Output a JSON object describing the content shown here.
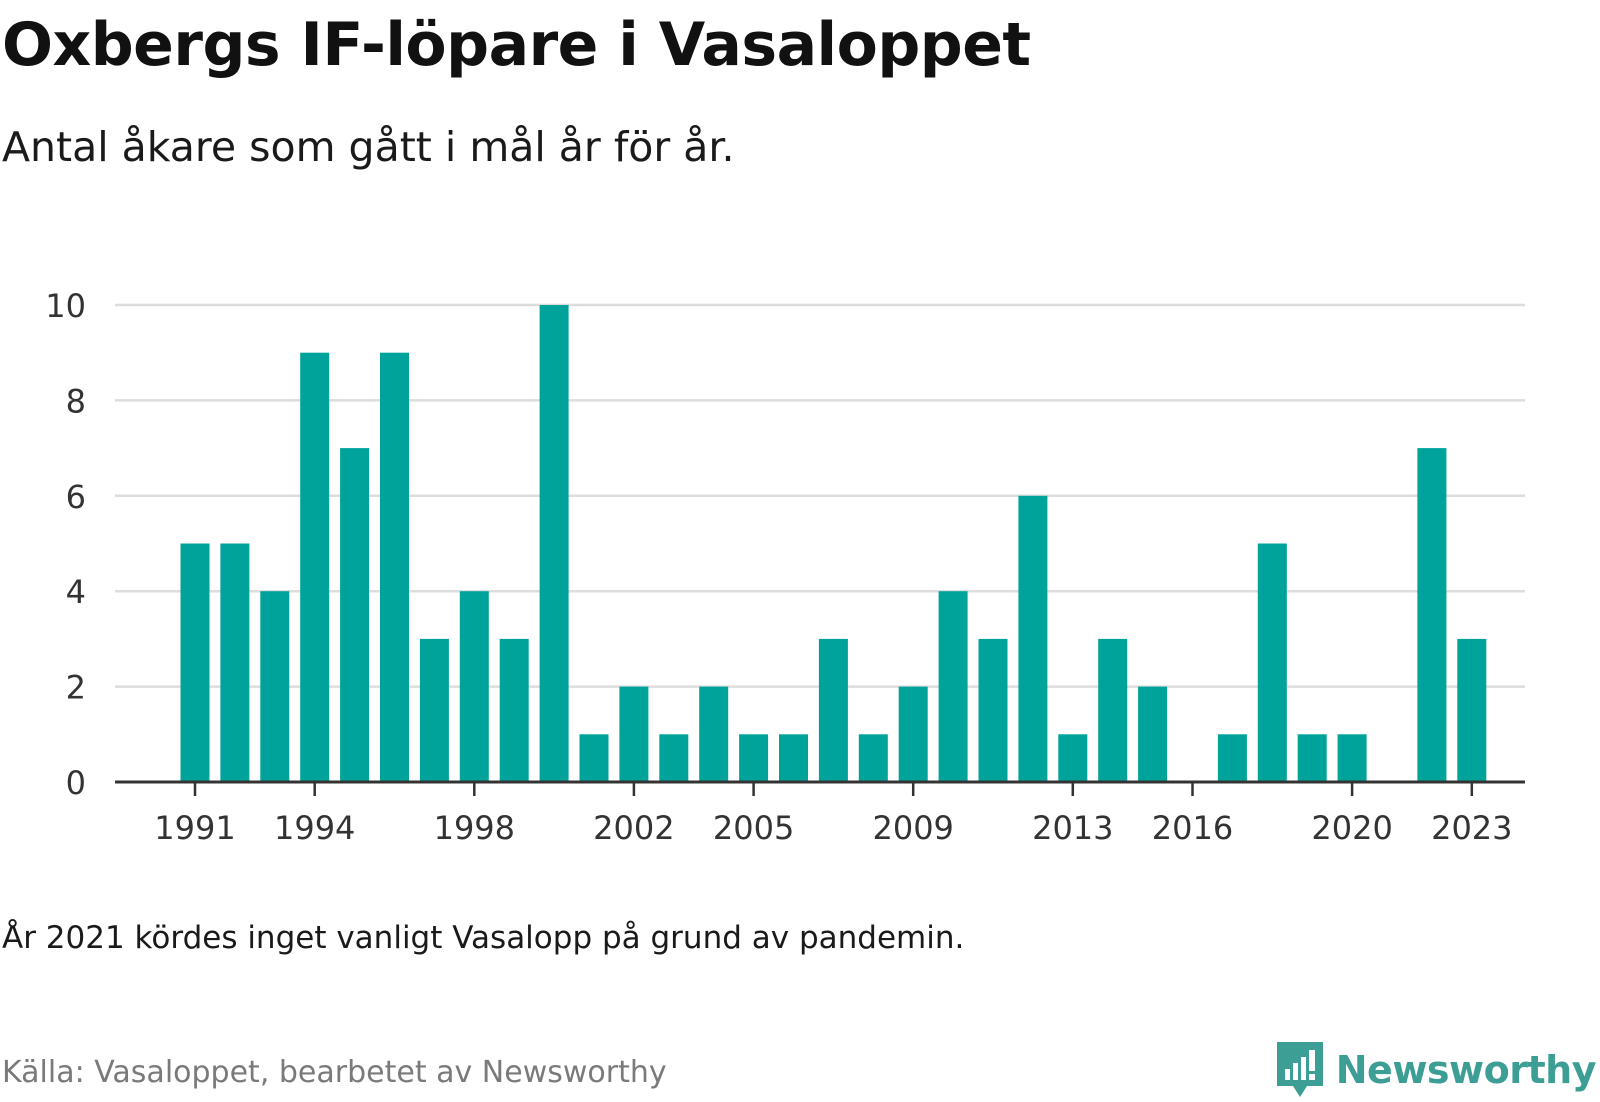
{
  "header": {
    "title": "Oxbergs IF-löpare i Vasaloppet",
    "subtitle": "Antal åkare som gått i mål år för år."
  },
  "footer": {
    "note": "År 2021 kördes inget vanligt Vasalopp på grund av pandemin.",
    "source": "Källa: Vasaloppet, bearbetet av Newsworthy",
    "logo_text": "Newsworthy",
    "logo_icon": "bar-chart-speech-bubble-icon"
  },
  "colors": {
    "bar": "#00A39A",
    "logo": "#3D9E95",
    "grid": "#dddddd",
    "axis": "#333333"
  },
  "chart_data": {
    "type": "bar",
    "categories": [
      1991,
      1992,
      1993,
      1994,
      1995,
      1996,
      1997,
      1998,
      1999,
      2000,
      2001,
      2002,
      2003,
      2004,
      2005,
      2006,
      2007,
      2008,
      2009,
      2010,
      2011,
      2012,
      2013,
      2014,
      2015,
      2016,
      2017,
      2018,
      2019,
      2020,
      2021,
      2022,
      2023
    ],
    "values": [
      5,
      5,
      4,
      9,
      7,
      9,
      3,
      4,
      3,
      10,
      1,
      2,
      1,
      2,
      1,
      1,
      3,
      1,
      2,
      4,
      3,
      6,
      1,
      3,
      2,
      0,
      1,
      5,
      1,
      1,
      0,
      7,
      3
    ],
    "x_tick_labels": [
      "1991",
      "1994",
      "1998",
      "2002",
      "2005",
      "2009",
      "2013",
      "2016",
      "2020",
      "2023"
    ],
    "y_ticks": [
      0,
      2,
      4,
      6,
      8,
      10
    ],
    "ylim": [
      0,
      10
    ],
    "grid": true
  }
}
